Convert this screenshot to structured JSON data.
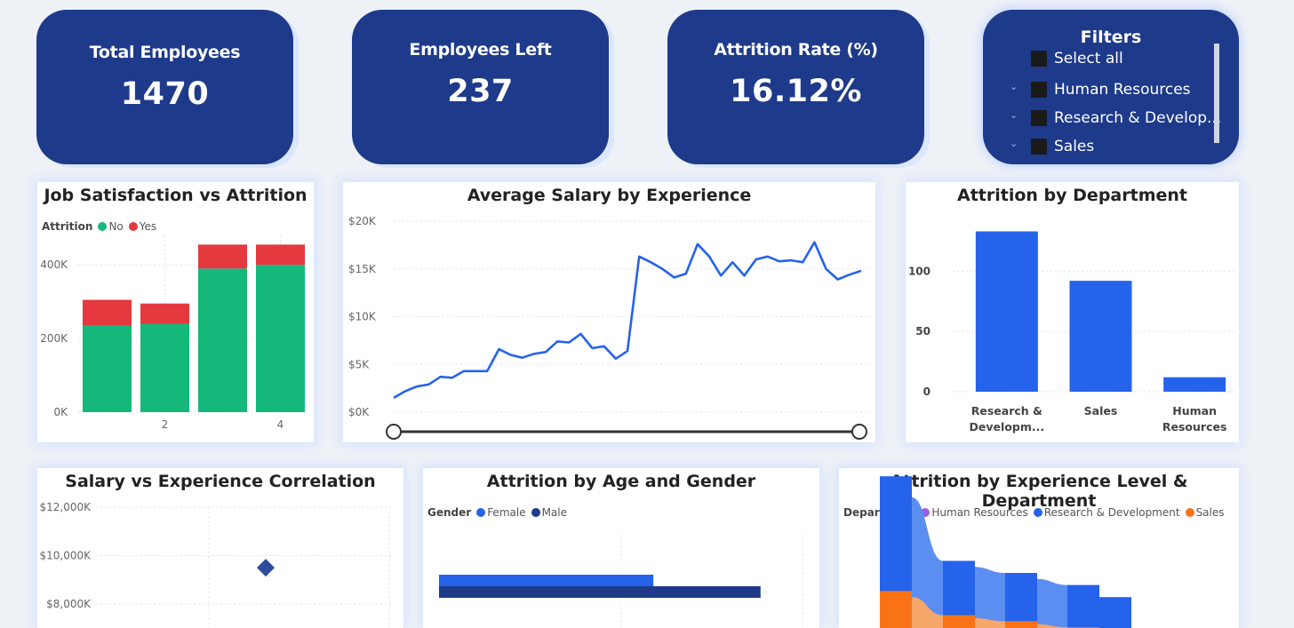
{
  "kpis": {
    "total_employees": {
      "label": "Total Employees",
      "value": "1470"
    },
    "employees_left": {
      "label": "Employees Left",
      "value": "237"
    },
    "attrition_rate": {
      "label": "Attrition Rate (%)",
      "value": "16.12%"
    }
  },
  "filters": {
    "title": "Filters",
    "items": [
      "Select all",
      "Human Resources",
      "Research & Develop...",
      "Sales"
    ]
  },
  "colors": {
    "navy": "#1e3a8a",
    "no": "#14b87a",
    "yes": "#e5393f",
    "line": "#2563eb",
    "bar": "#2563eb",
    "female": "#2563eb",
    "male": "#1e3a8a",
    "hr": "#9b5de5",
    "rd": "#2563eb",
    "sales": "#f97316",
    "scatter": "#2f4b9c"
  },
  "chart_data": [
    {
      "id": "job_satisfaction",
      "type": "bar",
      "stacked": true,
      "title": "Job Satisfaction vs Attrition",
      "legend_title": "Attrition",
      "categories": [
        "1",
        "2",
        "3",
        "4"
      ],
      "tick_labels": [
        "",
        "2",
        "",
        "4"
      ],
      "series": [
        {
          "name": "No",
          "values": [
            235000,
            240000,
            390000,
            400000
          ]
        },
        {
          "name": "Yes",
          "values": [
            70000,
            55000,
            65000,
            55000
          ]
        }
      ],
      "yticks": [
        "0K",
        "200K",
        "400K"
      ],
      "ylim": [
        0,
        480000
      ],
      "grid": true
    },
    {
      "id": "avg_salary",
      "type": "line",
      "title": "Average Salary by Experience",
      "x": [
        0,
        1,
        2,
        3,
        4,
        5,
        6,
        7,
        8,
        9,
        10,
        11,
        12,
        13,
        14,
        15,
        16,
        17,
        18,
        19,
        20,
        21,
        22,
        23,
        24,
        25,
        26,
        27,
        28,
        29,
        30,
        31,
        32,
        33,
        34,
        35,
        36,
        37,
        38,
        39,
        40
      ],
      "y": [
        1500,
        2200,
        2700,
        2900,
        3700,
        3600,
        4300,
        4300,
        4300,
        6600,
        6000,
        5700,
        6100,
        6300,
        7400,
        7300,
        8200,
        6700,
        6900,
        5600,
        6400,
        16300,
        15700,
        15000,
        14100,
        14500,
        17600,
        16300,
        14300,
        15700,
        14300,
        16000,
        16300,
        15800,
        15900,
        15700,
        17800,
        15000,
        13900,
        14400,
        14800
      ],
      "yticks": [
        "$0K",
        "$5K",
        "$10K",
        "$15K",
        "$20K"
      ],
      "ylim": [
        0,
        20000
      ]
    },
    {
      "id": "dept_attrition",
      "type": "bar",
      "title": "Attrition by Department",
      "categories": [
        "Research & Developm...",
        "Sales",
        "Human Resources"
      ],
      "values": [
        133,
        92,
        12
      ],
      "yticks": [
        "0",
        "50",
        "100"
      ],
      "ylim": [
        0,
        140
      ]
    },
    {
      "id": "salary_exp",
      "type": "scatter",
      "title": "Salary vs Experience Correlation",
      "points": [
        {
          "x": 1,
          "y": 9500
        }
      ],
      "yticks": [
        "$8,000K",
        "$10,000K",
        "$12,000K"
      ],
      "ylim": [
        7500,
        12200
      ]
    },
    {
      "id": "age_gender",
      "type": "bar",
      "orientation": "horizontal",
      "title": "Attrition by Age and Gender",
      "legend_title": "Gender",
      "series": [
        {
          "name": "Female",
          "values": [
            100
          ]
        },
        {
          "name": "Male",
          "values": [
            150
          ]
        }
      ],
      "xlim": [
        0,
        170
      ]
    },
    {
      "id": "exp_dept",
      "type": "area",
      "title": "Attrition by Experience Level & Department",
      "legend_title": "Department",
      "series_names": [
        "Human Resources",
        "Research & Development",
        "Sales"
      ],
      "series": [
        {
          "name": "Sales",
          "values": [
            14,
            12,
            6,
            5,
            4,
            3,
            2,
            0
          ]
        },
        {
          "name": "Research & Development",
          "values": [
            38,
            33,
            18,
            17,
            16,
            15,
            14,
            12
          ]
        }
      ]
    }
  ]
}
